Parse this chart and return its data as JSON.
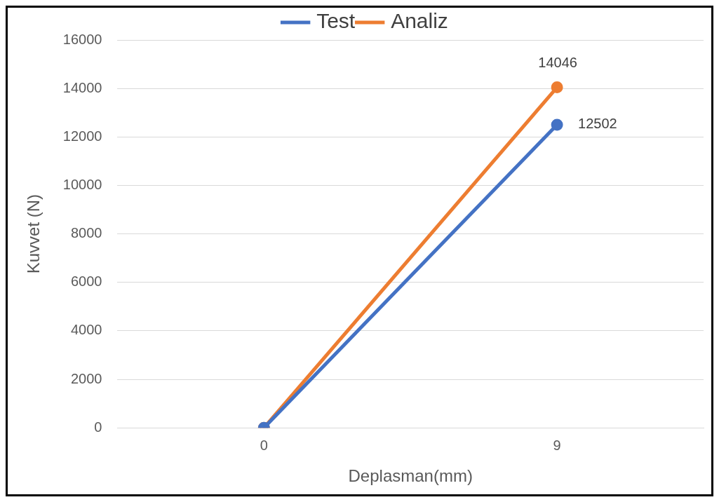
{
  "chart_data": {
    "type": "line",
    "xlabel": "Deplasman(mm)",
    "ylabel": "Kuvvet (N)",
    "categories": [
      "0",
      "9"
    ],
    "series": [
      {
        "name": "Test",
        "color": "#4472c4",
        "values": [
          0,
          12502
        ],
        "value_labels": [
          null,
          "12502"
        ]
      },
      {
        "name": "Analiz",
        "color": "#ed7d31",
        "values": [
          0,
          14046
        ],
        "value_labels": [
          null,
          "14046"
        ]
      }
    ],
    "ylim": [
      0,
      16000
    ],
    "yticks": [
      0,
      2000,
      4000,
      6000,
      8000,
      10000,
      12000,
      14000,
      16000
    ],
    "grid": "y",
    "legend": "top",
    "marker": "circle",
    "line_style": "solid"
  }
}
